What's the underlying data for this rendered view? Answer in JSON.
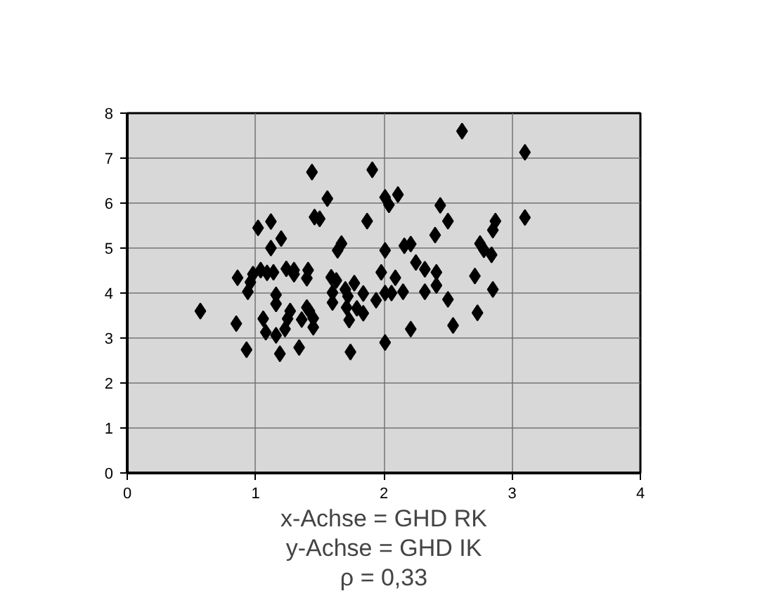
{
  "chart_data": {
    "type": "scatter",
    "marker": "diamond",
    "grid": true,
    "xlim": [
      0,
      4
    ],
    "xticks": [
      0,
      1,
      2,
      3,
      4
    ],
    "ylim": [
      0,
      8
    ],
    "yticks": [
      0,
      1,
      2,
      3,
      4,
      5,
      6,
      7,
      8
    ],
    "annotations": [
      "x-Achse = GHD RK",
      "y-Achse = GHD IK",
      "ρ = 0,33"
    ],
    "series": [
      {
        "color": "#000000",
        "x": [
          0.57,
          0.85,
          0.86,
          0.93,
          0.94,
          0.96,
          0.98,
          1.02,
          1.04,
          1.06,
          1.08,
          1.09,
          1.12,
          1.12,
          1.14,
          1.16,
          1.16,
          1.16,
          1.19,
          1.2,
          1.23,
          1.24,
          1.25,
          1.27,
          1.3,
          1.3,
          1.34,
          1.36,
          1.4,
          1.41,
          1.4,
          1.42,
          1.44,
          1.45,
          1.45,
          1.46,
          1.5,
          1.56,
          1.59,
          1.6,
          1.6,
          1.63,
          1.64,
          1.67,
          1.7,
          1.72,
          1.71,
          1.73,
          1.74,
          1.77,
          1.79,
          1.84,
          1.84,
          1.87,
          1.91,
          1.94,
          1.98,
          2.01,
          2.01,
          2.01,
          2.01,
          2.04,
          2.06,
          2.09,
          2.11,
          2.15,
          2.16,
          2.21,
          2.21,
          2.25,
          2.32,
          2.32,
          2.4,
          2.41,
          2.41,
          2.44,
          2.5,
          2.5,
          2.54,
          2.61,
          2.71,
          2.73,
          2.75,
          2.78,
          2.84,
          2.85,
          2.85,
          2.87,
          3.1,
          3.1
        ],
        "values": [
          3.6,
          3.32,
          4.34,
          2.74,
          4.03,
          4.24,
          4.42,
          5.45,
          4.51,
          3.43,
          3.13,
          4.45,
          5.59,
          5.0,
          4.46,
          3.96,
          3.76,
          3.06,
          2.65,
          5.21,
          3.2,
          4.54,
          3.43,
          3.6,
          4.51,
          4.42,
          2.79,
          3.41,
          4.33,
          4.51,
          3.68,
          3.6,
          6.69,
          3.44,
          3.24,
          5.69,
          5.65,
          6.1,
          4.35,
          4.01,
          3.79,
          4.28,
          4.95,
          5.1,
          4.08,
          3.93,
          3.68,
          3.4,
          2.69,
          4.22,
          3.66,
          3.99,
          3.55,
          5.6,
          6.74,
          3.84,
          4.46,
          6.13,
          4.95,
          4.0,
          2.9,
          5.96,
          4.0,
          4.34,
          6.19,
          4.03,
          5.05,
          5.09,
          3.2,
          4.68,
          4.53,
          4.03,
          5.29,
          4.46,
          4.17,
          5.95,
          3.86,
          5.6,
          3.28,
          7.6,
          4.38,
          3.56,
          5.1,
          4.96,
          4.85,
          5.4,
          4.08,
          5.6,
          7.13,
          5.68
        ]
      }
    ]
  }
}
